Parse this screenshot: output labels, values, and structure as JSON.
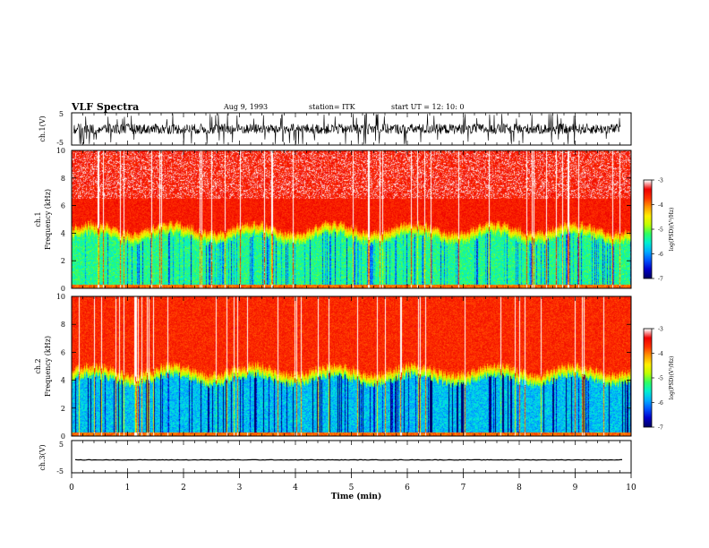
{
  "header": {
    "title": "VLF Spectra",
    "date": "Aug 9, 1993",
    "station": "station= ITK",
    "start": "start UT = 12: 10: 0"
  },
  "colors": {
    "scale": [
      "#000066",
      "#0000cc",
      "#0055ff",
      "#00b0ff",
      "#00f0d0",
      "#30ff60",
      "#c0ff00",
      "#ffee00",
      "#ff9900",
      "#ff3300",
      "#ee0000",
      "#ffffff"
    ],
    "trace": "#000000",
    "axis": "#000000"
  },
  "chart_data": [
    {
      "id": "ch1-waveform",
      "type": "line",
      "ylabel": "ch.1(V)",
      "ylim": [
        -5,
        5
      ],
      "yticks": [
        "5",
        "-5"
      ],
      "description_level": "noisy waveform"
    },
    {
      "id": "ch1-spectrogram",
      "type": "heatmap",
      "ylabel": "ch.1\nFrequency (kHz)",
      "ylim": [
        0,
        10
      ],
      "yticks": [
        "0",
        "2",
        "4",
        "6",
        "8",
        "10"
      ],
      "colorbar": {
        "label": "log(PSD)(V²/Hz)",
        "ticks": [
          "-3",
          "-4",
          "-5",
          "-6",
          "-7"
        ],
        "range": [
          -7,
          -3
        ]
      },
      "band_top_khz": 3.8
    },
    {
      "id": "ch2-spectrogram",
      "type": "heatmap",
      "ylabel": "ch.2\nFrequency (kHz)",
      "ylim": [
        0,
        10
      ],
      "yticks": [
        "0",
        "2",
        "4",
        "6",
        "8",
        "10"
      ],
      "colorbar": {
        "label": "log(PSD)(V²/Hz)",
        "ticks": [
          "-3",
          "-4",
          "-5",
          "-6",
          "-7"
        ],
        "range": [
          -7,
          -3
        ]
      },
      "band_top_khz": 4.2
    },
    {
      "id": "ch3-waveform",
      "type": "line",
      "ylabel": "ch.3(V)",
      "ylim": [
        -5,
        5
      ],
      "yticks": [
        "5",
        "-5"
      ],
      "level": -1
    }
  ],
  "xaxis": {
    "label": "Time (min)",
    "xlim": [
      0,
      10
    ],
    "ticks": [
      "0",
      "1",
      "2",
      "3",
      "4",
      "5",
      "6",
      "7",
      "8",
      "9",
      "10"
    ]
  }
}
